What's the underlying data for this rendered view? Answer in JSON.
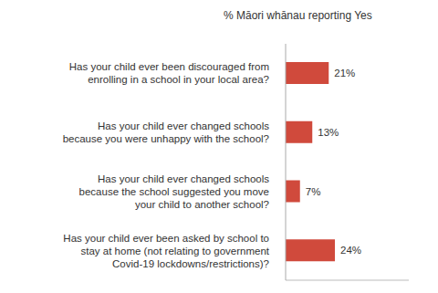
{
  "chart_data": {
    "type": "bar",
    "orientation": "horizontal",
    "title": "% Māori whānau reporting Yes",
    "categories": [
      "Has your child ever been discouraged from enrolling in a school in your local area?",
      "Has your child ever changed schools because you were unhappy with the school?",
      "Has your child ever changed schools because the school suggested you move your child to another school?",
      "Has your child ever been asked by school to stay at home (not relating to government Covid-19 lockdowns/restrictions)?"
    ],
    "values": [
      21,
      13,
      7,
      24
    ],
    "value_labels": [
      "21%",
      "13%",
      "7%",
      "24%"
    ],
    "data_labels": true,
    "color": "#d04a3c",
    "xlim": [
      0,
      60
    ],
    "tick_labels": "y",
    "grid": false
  }
}
